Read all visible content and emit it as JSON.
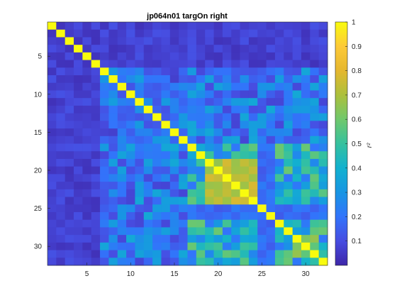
{
  "chart_data": {
    "type": "heatmap",
    "title": "jp064n01 targOn right",
    "n": 32,
    "x_ticks": [
      5,
      10,
      15,
      20,
      25,
      30
    ],
    "y_ticks": [
      5,
      10,
      15,
      20,
      25,
      30
    ],
    "colorbar": {
      "label": "r²",
      "range": [
        0,
        1
      ],
      "ticks": [
        0.1,
        0.2,
        0.3,
        0.4,
        0.5,
        0.6,
        0.7,
        0.8,
        0.9,
        1
      ],
      "tick_labels": [
        "0.1",
        "0.2",
        "0.3",
        "0.4",
        "0.5",
        "0.6",
        "0.7",
        "0.8",
        "0.9",
        "1"
      ],
      "colormap": "parula"
    },
    "block_means": {
      "diagonal": 1.0,
      "ch1_6": 0.03,
      "ch7_16": 0.22,
      "ch17_32": 0.4,
      "hot_block_19_23_rows_19_24": 0.72,
      "low_rows_25_26": 0.12
    }
  }
}
